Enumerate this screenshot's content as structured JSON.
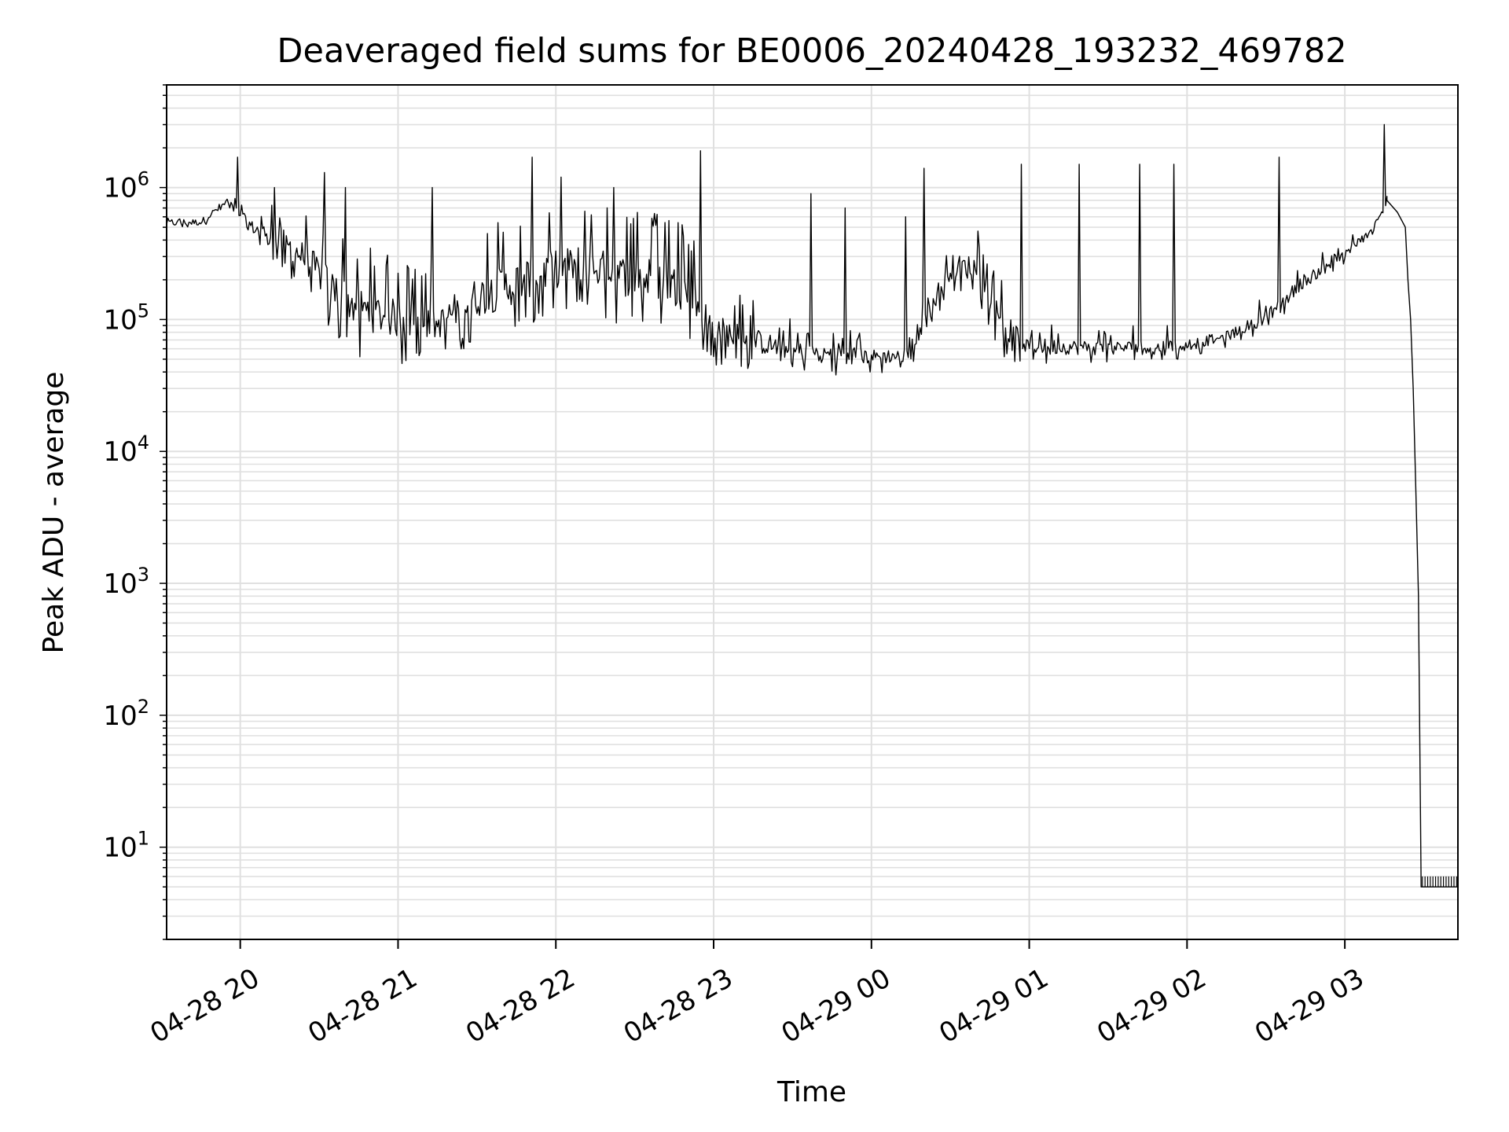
{
  "chart_data": {
    "type": "line",
    "title": "Deaveraged field sums for BE0006_20240428_193232_469782",
    "xlabel": "Time",
    "ylabel": "Peak ADU - average",
    "yscale": "log",
    "ylim": [
      2,
      6000000
    ],
    "xlim": [
      "2024-04-28 19:32",
      "2024-04-29 03:43"
    ],
    "grid": true,
    "line_color": "#000000",
    "grid_color": "#e0e0e0",
    "x_ticks": [
      {
        "t": "2024-04-28 20:00",
        "label": "04-28 20"
      },
      {
        "t": "2024-04-28 21:00",
        "label": "04-28 21"
      },
      {
        "t": "2024-04-28 22:00",
        "label": "04-28 22"
      },
      {
        "t": "2024-04-28 23:00",
        "label": "04-28 23"
      },
      {
        "t": "2024-04-29 00:00",
        "label": "04-29 00"
      },
      {
        "t": "2024-04-29 01:00",
        "label": "04-29 01"
      },
      {
        "t": "2024-04-29 02:00",
        "label": "04-29 02"
      },
      {
        "t": "2024-04-29 03:00",
        "label": "04-29 03"
      }
    ],
    "y_ticks": [
      {
        "value": 10,
        "base": "10",
        "exp": "1"
      },
      {
        "value": 100,
        "base": "10",
        "exp": "2"
      },
      {
        "value": 1000,
        "base": "10",
        "exp": "3"
      },
      {
        "value": 10000,
        "base": "10",
        "exp": "4"
      },
      {
        "value": 100000,
        "base": "10",
        "exp": "5"
      },
      {
        "value": 1000000,
        "base": "10",
        "exp": "6"
      }
    ],
    "series": [
      {
        "envelope": [
          {
            "t": "2024-04-28 19:32",
            "low": 450000,
            "high": 700000
          },
          {
            "t": "2024-04-28 19:45",
            "low": 480000,
            "high": 650000
          },
          {
            "t": "2024-04-28 19:55",
            "low": 650000,
            "high": 1000000
          },
          {
            "t": "2024-04-28 20:05",
            "low": 380000,
            "high": 700000
          },
          {
            "t": "2024-04-28 20:15",
            "low": 250000,
            "high": 800000
          },
          {
            "t": "2024-04-28 20:25",
            "low": 150000,
            "high": 700000
          },
          {
            "t": "2024-04-28 20:35",
            "low": 80000,
            "high": 500000
          },
          {
            "t": "2024-04-28 20:45",
            "low": 50000,
            "high": 400000
          },
          {
            "t": "2024-04-28 21:00",
            "low": 45000,
            "high": 300000
          },
          {
            "t": "2024-04-28 21:15",
            "low": 50000,
            "high": 200000
          },
          {
            "t": "2024-04-28 21:25",
            "low": 60000,
            "high": 400000
          },
          {
            "t": "2024-04-28 21:40",
            "low": 70000,
            "high": 600000
          },
          {
            "t": "2024-04-28 21:55",
            "low": 100000,
            "high": 700000
          },
          {
            "t": "2024-04-28 22:10",
            "low": 120000,
            "high": 800000
          },
          {
            "t": "2024-04-28 22:25",
            "low": 90000,
            "high": 700000
          },
          {
            "t": "2024-04-28 22:40",
            "low": 80000,
            "high": 700000
          },
          {
            "t": "2024-04-28 22:50",
            "low": 70000,
            "high": 500000
          },
          {
            "t": "2024-04-28 23:00",
            "low": 45000,
            "high": 200000
          },
          {
            "t": "2024-04-28 23:30",
            "low": 38000,
            "high": 100000
          },
          {
            "t": "2024-04-29 00:00",
            "low": 38000,
            "high": 80000
          },
          {
            "t": "2024-04-29 00:15",
            "low": 40000,
            "high": 80000
          },
          {
            "t": "2024-04-29 00:20",
            "low": 70000,
            "high": 150000
          },
          {
            "t": "2024-04-29 00:30",
            "low": 150000,
            "high": 500000
          },
          {
            "t": "2024-04-29 00:40",
            "low": 150000,
            "high": 500000
          },
          {
            "t": "2024-04-29 00:50",
            "low": 50000,
            "high": 200000
          },
          {
            "t": "2024-04-29 01:00",
            "low": 45000,
            "high": 100000
          },
          {
            "t": "2024-04-29 01:30",
            "low": 45000,
            "high": 90000
          },
          {
            "t": "2024-04-29 02:00",
            "low": 50000,
            "high": 90000
          },
          {
            "t": "2024-04-29 02:15",
            "low": 60000,
            "high": 100000
          },
          {
            "t": "2024-04-29 02:30",
            "low": 80000,
            "high": 150000
          },
          {
            "t": "2024-04-29 02:45",
            "low": 150000,
            "high": 300000
          },
          {
            "t": "2024-04-29 03:00",
            "low": 250000,
            "high": 400000
          },
          {
            "t": "2024-04-29 03:10",
            "low": 400000,
            "high": 600000
          },
          {
            "t": "2024-04-29 03:16",
            "low": 700000,
            "high": 800000
          }
        ],
        "spikes": [
          {
            "t": "2024-04-28 19:59",
            "value": 1700000
          },
          {
            "t": "2024-04-28 20:13",
            "value": 1000000
          },
          {
            "t": "2024-04-28 20:32",
            "value": 1300000
          },
          {
            "t": "2024-04-28 20:40",
            "value": 1000000
          },
          {
            "t": "2024-04-28 21:13",
            "value": 1000000
          },
          {
            "t": "2024-04-28 21:51",
            "value": 1700000
          },
          {
            "t": "2024-04-28 22:02",
            "value": 1200000
          },
          {
            "t": "2024-04-28 22:22",
            "value": 1000000
          },
          {
            "t": "2024-04-28 22:55",
            "value": 1900000
          },
          {
            "t": "2024-04-28 23:37",
            "value": 900000
          },
          {
            "t": "2024-04-28 23:50",
            "value": 700000
          },
          {
            "t": "2024-04-29 00:13",
            "value": 600000
          },
          {
            "t": "2024-04-29 00:20",
            "value": 1400000
          },
          {
            "t": "2024-04-29 00:57",
            "value": 1500000
          },
          {
            "t": "2024-04-29 01:19",
            "value": 1500000
          },
          {
            "t": "2024-04-29 01:42",
            "value": 1500000
          },
          {
            "t": "2024-04-29 01:55",
            "value": 1500000
          },
          {
            "t": "2024-04-29 02:35",
            "value": 1700000
          },
          {
            "t": "2024-04-29 03:15",
            "value": 3000000
          }
        ],
        "points": [
          {
            "t": "2024-04-29 03:16",
            "value": 800000
          },
          {
            "t": "2024-04-29 03:20",
            "value": 650000
          },
          {
            "t": "2024-04-29 03:23",
            "value": 500000
          },
          {
            "t": "2024-04-29 03:24",
            "value": 200000
          },
          {
            "t": "2024-04-29 03:25",
            "value": 100000
          },
          {
            "t": "2024-04-29 03:26",
            "value": 30000
          },
          {
            "t": "2024-04-29 03:27",
            "value": 5000
          },
          {
            "t": "2024-04-29 03:28",
            "value": 800
          },
          {
            "t": "2024-04-29 03:29",
            "value": 5
          },
          {
            "t": "2024-04-29 03:43",
            "value": 5
          }
        ]
      }
    ]
  }
}
